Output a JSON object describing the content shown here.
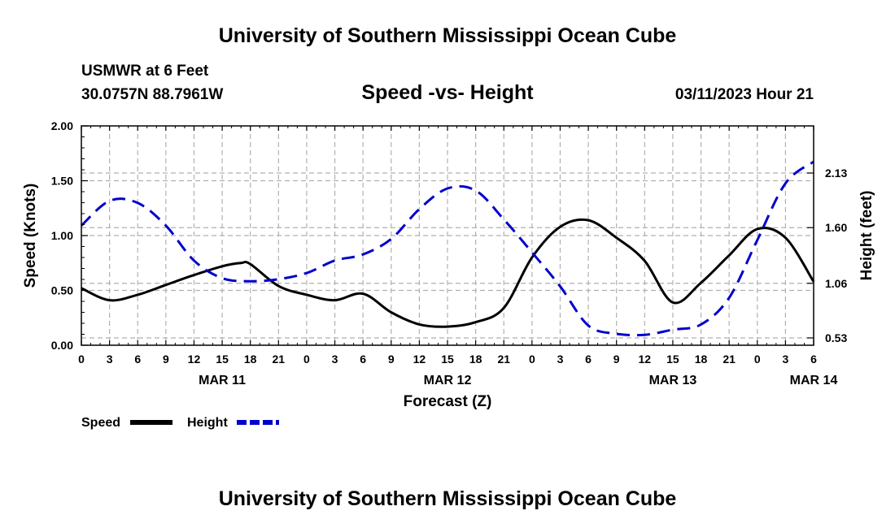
{
  "page": {
    "top_title": "University of Southern Mississippi Ocean Cube",
    "station": "USMWR at 6 Feet",
    "coordinates": "30.0757N  88.7961W",
    "date_label": "03/11/2023 Hour 21",
    "bottom_title": "University of Southern Mississippi Ocean Cube"
  },
  "chart_data": {
    "type": "line",
    "title": "Speed -vs- Height",
    "xlabel": "Forecast (Z)",
    "ylabel_left": "Speed (Knots)",
    "ylabel_right": "Height (feet)",
    "hour_ticks": [
      "0",
      "3",
      "6",
      "9",
      "12",
      "15",
      "18",
      "21",
      "0",
      "3",
      "6",
      "9",
      "12",
      "15",
      "18",
      "21",
      "0",
      "3",
      "6",
      "9",
      "12",
      "15",
      "18",
      "21",
      "0",
      "3",
      "6"
    ],
    "day_labels": [
      {
        "label": "MAR 11",
        "hour": 15
      },
      {
        "label": "MAR 12",
        "hour": 39
      },
      {
        "label": "MAR 13",
        "hour": 63
      },
      {
        "label": "MAR 14",
        "hour": 78
      }
    ],
    "x_range": [
      0,
      78
    ],
    "left_axis": {
      "range": [
        0,
        2.0
      ],
      "ticks": [
        "0.00",
        "0.50",
        "1.00",
        "1.50",
        "2.00"
      ],
      "values": [
        0,
        0.5,
        1.0,
        1.5,
        2.0
      ]
    },
    "right_axis": {
      "ticks": [
        "0.53",
        "1.06",
        "1.60",
        "2.13"
      ],
      "values": [
        0.53,
        1.06,
        1.6,
        2.13
      ]
    },
    "grid": true,
    "series": [
      {
        "name": "Speed",
        "axis": "left",
        "color": "#000000",
        "dashed": false,
        "x": [
          0,
          3,
          6,
          9,
          12,
          15,
          17,
          18,
          21,
          24,
          27,
          30,
          33,
          36,
          39,
          42,
          45,
          48,
          51,
          54,
          57,
          60,
          63,
          66,
          69,
          72,
          75,
          78
        ],
        "values": [
          0.52,
          0.41,
          0.46,
          0.55,
          0.64,
          0.72,
          0.75,
          0.74,
          0.54,
          0.46,
          0.41,
          0.47,
          0.3,
          0.19,
          0.17,
          0.21,
          0.34,
          0.8,
          1.08,
          1.14,
          0.98,
          0.77,
          0.39,
          0.57,
          0.82,
          1.06,
          0.98,
          0.58
        ]
      },
      {
        "name": "Height",
        "axis": "right",
        "color": "#0000cc",
        "dashed": true,
        "x": [
          0,
          3,
          6,
          9,
          12,
          15,
          18,
          21,
          24,
          27,
          30,
          33,
          36,
          39,
          42,
          45,
          48,
          51,
          54,
          57,
          60,
          63,
          66,
          69,
          72,
          75,
          78
        ],
        "values": [
          1.62,
          1.86,
          1.84,
          1.62,
          1.28,
          1.11,
          1.08,
          1.1,
          1.16,
          1.28,
          1.34,
          1.49,
          1.78,
          1.98,
          1.96,
          1.68,
          1.36,
          1.03,
          0.65,
          0.57,
          0.56,
          0.61,
          0.66,
          0.92,
          1.48,
          2.03,
          2.24
        ]
      }
    ],
    "legend": [
      {
        "label": "Speed",
        "color": "#000000",
        "dashed": false
      },
      {
        "label": "Height",
        "color": "#0000cc",
        "dashed": true
      }
    ],
    "legend_position": "bottom-left"
  }
}
